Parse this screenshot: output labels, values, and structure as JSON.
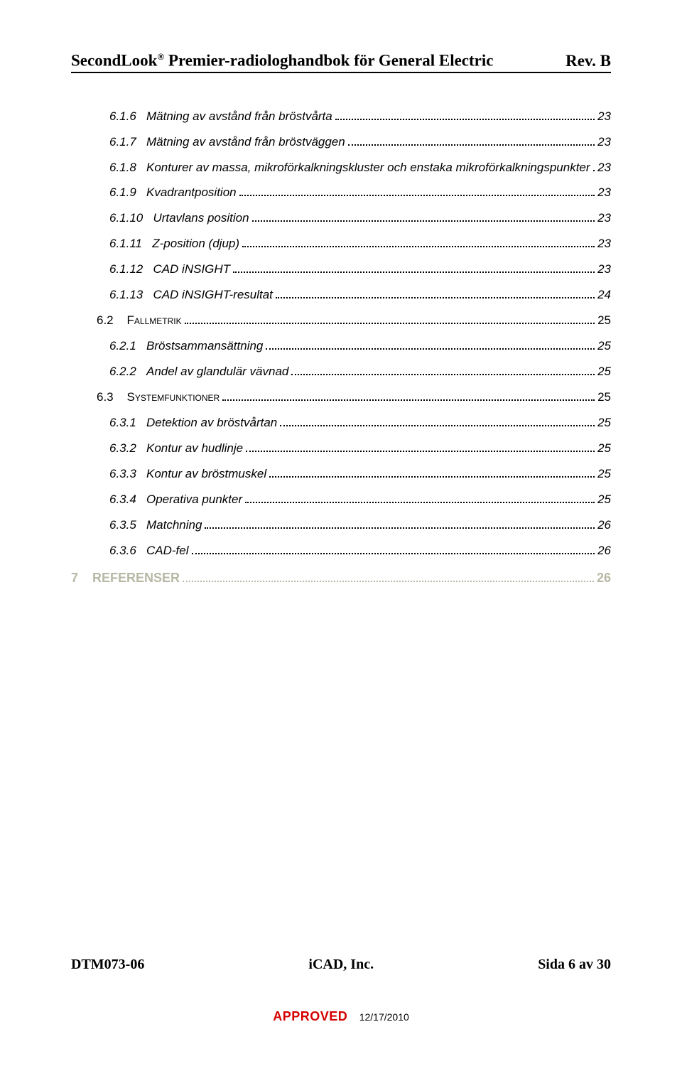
{
  "header": {
    "product": "SecondLook",
    "reg_mark": "®",
    "title_rest": " Premier-radiologhandbok för General Electric",
    "revision": "Rev. B"
  },
  "toc": [
    {
      "level": 3,
      "num": "6.1.6",
      "label": "Mätning av avstånd från bröstvårta",
      "page": "23",
      "italic": true
    },
    {
      "level": 3,
      "num": "6.1.7",
      "label": "Mätning av avstånd från bröstväggen",
      "page": "23",
      "italic": true
    },
    {
      "level": 3,
      "num": "6.1.8",
      "label": "Konturer av massa, mikroförkalkningskluster och enstaka mikroförkalkningspunkter",
      "page": "23",
      "italic": true
    },
    {
      "level": 3,
      "num": "6.1.9",
      "label": "Kvadrantposition",
      "page": "23",
      "italic": true
    },
    {
      "level": 3,
      "num": "6.1.10",
      "label": "Urtavlans position",
      "page": "23",
      "italic": true
    },
    {
      "level": 3,
      "num": "6.1.11",
      "label": "Z-position (djup)",
      "page": "23",
      "italic": true
    },
    {
      "level": 3,
      "num": "6.1.12",
      "label": "CAD iNSIGHT",
      "page": "23",
      "italic": true
    },
    {
      "level": 3,
      "num": "6.1.13",
      "label": "CAD iNSIGHT-resultat",
      "page": "24",
      "italic": true
    },
    {
      "level": 2,
      "num": "6.2",
      "label": "Fallmetrik",
      "page": "25",
      "smallcaps": true
    },
    {
      "level": 3,
      "num": "6.2.1",
      "label": "Bröstsammansättning",
      "page": "25",
      "italic": true
    },
    {
      "level": 3,
      "num": "6.2.2",
      "label": "Andel av glandulär vävnad",
      "page": "25",
      "italic": true
    },
    {
      "level": 2,
      "num": "6.3",
      "label": "Systemfunktioner",
      "page": "25",
      "smallcaps": true
    },
    {
      "level": 3,
      "num": "6.3.1",
      "label": "Detektion av bröstvårtan",
      "page": "25",
      "italic": true
    },
    {
      "level": 3,
      "num": "6.3.2",
      "label": "Kontur av hudlinje",
      "page": "25",
      "italic": true
    },
    {
      "level": 3,
      "num": "6.3.3",
      "label": "Kontur av bröstmuskel",
      "page": "25",
      "italic": true
    },
    {
      "level": 3,
      "num": "6.3.4",
      "label": "Operativa punkter",
      "page": "25",
      "italic": true
    },
    {
      "level": 3,
      "num": "6.3.5",
      "label": "Matchning",
      "page": "26",
      "italic": true
    },
    {
      "level": 3,
      "num": "6.3.6",
      "label": "CAD-fel",
      "page": "26",
      "italic": true
    }
  ],
  "references": {
    "num": "7",
    "label": "REFERENSER",
    "page": "26"
  },
  "footer": {
    "doc_id": "DTM073-06",
    "company": "iCAD, Inc.",
    "page_label": "Sida 6 av 30"
  },
  "stamp": {
    "status": "APPROVED",
    "date": "12/17/2010"
  },
  "colors": {
    "text": "#000000",
    "muted": "#b8b8a6",
    "approved": "#d40000",
    "background": "#ffffff"
  },
  "typography": {
    "serif_family": "Times New Roman",
    "sans_family": "Arial",
    "header_size_pt": 17,
    "toc_size_pt": 13,
    "footer_size_pt": 15
  }
}
